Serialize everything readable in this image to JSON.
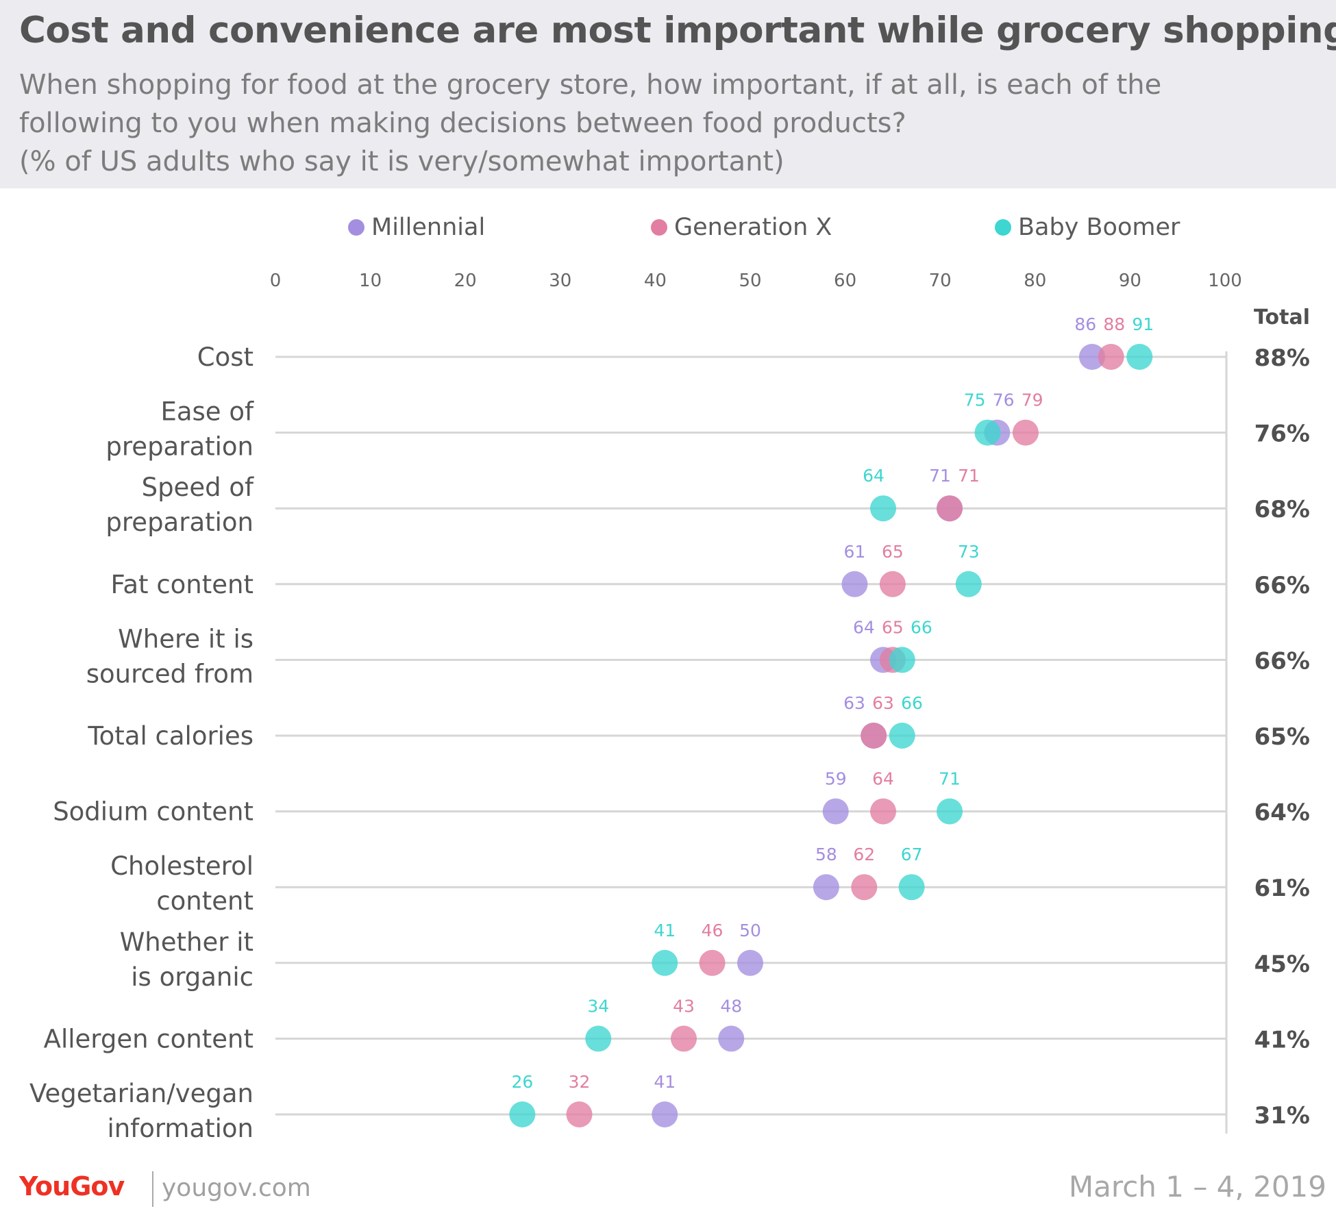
{
  "header": {
    "title": "Cost and convenience are most important while grocery shopping",
    "subtitle_lines": [
      "When shopping for food at the grocery store, how important, if at all, is each of the",
      "following to you when making decisions between food products?",
      "(% of US adults who say it is very/somewhat important)"
    ]
  },
  "colors": {
    "header_bg": "#ebebf0",
    "millennial": "#a48ee0",
    "generation_x": "#e27ea1",
    "baby_boomer": "#3dd6d0",
    "gridline": "#d6d6d6",
    "axis_text": "#666666",
    "category_text": "#555555",
    "total_text": "#505050"
  },
  "legend": [
    {
      "key": "millennial",
      "label": "Millennial"
    },
    {
      "key": "generation_x",
      "label": "Generation X"
    },
    {
      "key": "baby_boomer",
      "label": "Baby Boomer"
    }
  ],
  "footer": {
    "brand": "YouGov",
    "site": "yougov.com",
    "date": "March 1 – 4, 2019"
  },
  "chart_data": {
    "type": "scatter",
    "subtype": "dot-plot",
    "title": "Cost and convenience are most important while grocery shopping",
    "xlim": [
      0,
      100
    ],
    "x_ticks": [
      0,
      10,
      20,
      30,
      40,
      50,
      60,
      70,
      80,
      90,
      100
    ],
    "total_header": "Total",
    "series_order": [
      "millennial",
      "generation_x",
      "baby_boomer"
    ],
    "categories": [
      {
        "lines": [
          "Cost"
        ],
        "millennial": 86,
        "generation_x": 88,
        "baby_boomer": 91,
        "total": "88%"
      },
      {
        "lines": [
          "Ease of",
          "preparation"
        ],
        "millennial": 76,
        "generation_x": 79,
        "baby_boomer": 75,
        "total": "76%"
      },
      {
        "lines": [
          "Speed of",
          "preparation"
        ],
        "millennial": 71,
        "generation_x": 71,
        "baby_boomer": 64,
        "total": "68%"
      },
      {
        "lines": [
          "Fat content"
        ],
        "millennial": 61,
        "generation_x": 65,
        "baby_boomer": 73,
        "total": "66%"
      },
      {
        "lines": [
          "Where it is",
          "sourced from"
        ],
        "millennial": 64,
        "generation_x": 65,
        "baby_boomer": 66,
        "total": "66%"
      },
      {
        "lines": [
          "Total calories"
        ],
        "millennial": 63,
        "generation_x": 63,
        "baby_boomer": 66,
        "total": "65%"
      },
      {
        "lines": [
          "Sodium content"
        ],
        "millennial": 59,
        "generation_x": 64,
        "baby_boomer": 71,
        "total": "64%"
      },
      {
        "lines": [
          "Cholesterol",
          "content"
        ],
        "millennial": 58,
        "generation_x": 62,
        "baby_boomer": 67,
        "total": "61%"
      },
      {
        "lines": [
          "Whether it",
          "is organic"
        ],
        "millennial": 50,
        "generation_x": 46,
        "baby_boomer": 41,
        "total": "45%"
      },
      {
        "lines": [
          "Allergen content"
        ],
        "millennial": 48,
        "generation_x": 43,
        "baby_boomer": 34,
        "total": "41%"
      },
      {
        "lines": [
          "Vegetarian/vegan",
          "information"
        ],
        "millennial": 41,
        "generation_x": 32,
        "baby_boomer": 26,
        "total": "31%"
      }
    ]
  }
}
